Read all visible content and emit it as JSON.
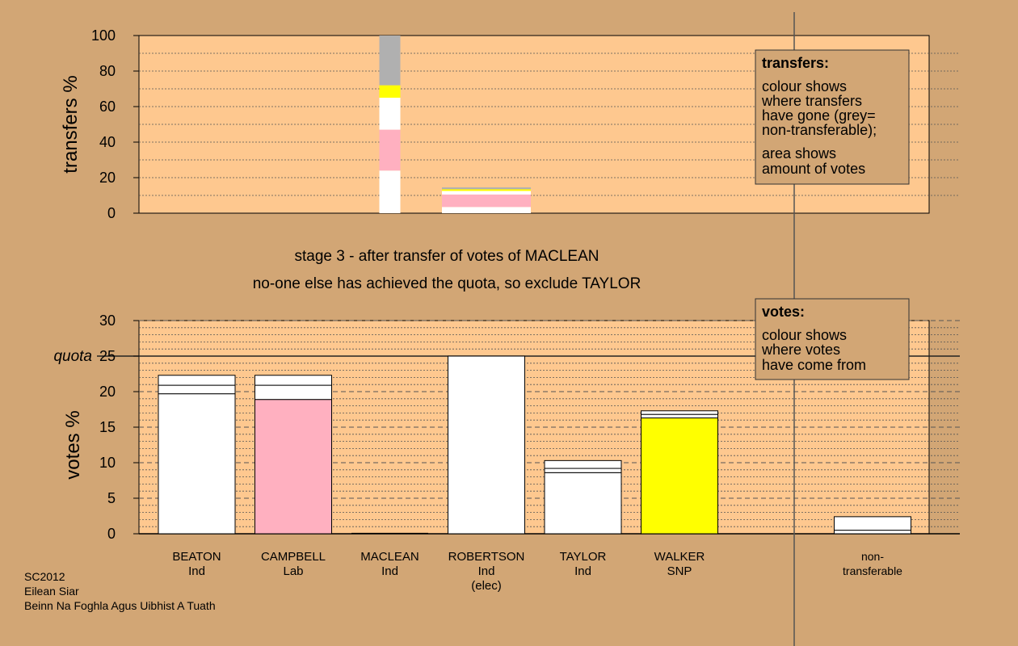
{
  "caption": {
    "line1": "stage 3 - after transfer of votes of MACLEAN",
    "line2": "no-one else has achieved the quota, so exclude TAYLOR"
  },
  "legend_transfers": {
    "title": "transfers:",
    "lines1": [
      "colour shows",
      "where transfers",
      "have gone (grey=",
      "non-transferable);"
    ],
    "lines2": [
      "area shows",
      "amount of votes"
    ]
  },
  "legend_votes": {
    "title": "votes:",
    "lines": [
      "colour shows",
      "where votes",
      "have come from"
    ]
  },
  "footer": [
    "SC2012",
    "Eilean Siar",
    "Beinn Na Foghla Agus Uibhist A Tuath"
  ],
  "colors": {
    "background": "#d2a675",
    "plot_bg": "#fec88f",
    "white": "#ffffff",
    "pink": "#ffb0c0",
    "yellow": "#ffff00",
    "grey": "#b0b0b0",
    "green": "#90d090"
  },
  "chart_data": [
    {
      "type": "bar",
      "name": "transfers",
      "ylabel": "transfers %",
      "ylim": [
        0,
        100
      ],
      "yticks": [
        0,
        20,
        40,
        60,
        80,
        100
      ],
      "grid": true,
      "bars": [
        {
          "candidate": "MACLEAN",
          "segments": [
            {
              "from": 0,
              "to": 24,
              "color": "white"
            },
            {
              "from": 24,
              "to": 47,
              "color": "pink"
            },
            {
              "from": 47,
              "to": 65,
              "color": "white"
            },
            {
              "from": 65,
              "to": 72,
              "color": "yellow"
            },
            {
              "from": 72,
              "to": 100,
              "color": "grey"
            }
          ]
        },
        {
          "candidate": "ROBERTSON",
          "segments": [
            {
              "from": 0,
              "to": 3.5,
              "color": "white"
            },
            {
              "from": 3.5,
              "to": 10.5,
              "color": "pink"
            },
            {
              "from": 10.5,
              "to": 12.5,
              "color": "white"
            },
            {
              "from": 12.5,
              "to": 13.5,
              "color": "yellow"
            },
            {
              "from": 13.5,
              "to": 14.5,
              "color": "grey"
            }
          ]
        }
      ]
    },
    {
      "type": "bar",
      "name": "votes",
      "ylabel": "votes %",
      "ylim": [
        0,
        30
      ],
      "yticks": [
        0,
        5,
        10,
        15,
        20,
        25,
        30
      ],
      "quota": 25,
      "quota_label": "quota",
      "grid": true,
      "categories": [
        {
          "name": "BEATON",
          "party": "Ind",
          "extra": ""
        },
        {
          "name": "CAMPBELL",
          "party": "Lab",
          "extra": ""
        },
        {
          "name": "MACLEAN",
          "party": "Ind",
          "extra": ""
        },
        {
          "name": "ROBERTSON",
          "party": "Ind",
          "extra": "(elec)"
        },
        {
          "name": "TAYLOR",
          "party": "Ind",
          "extra": ""
        },
        {
          "name": "WALKER",
          "party": "SNP",
          "extra": ""
        },
        {
          "name": "",
          "party": "",
          "extra": ""
        },
        {
          "name": "non-",
          "party": "transferable",
          "extra": ""
        }
      ],
      "bars": [
        {
          "candidate": "BEATON",
          "segments": [
            {
              "from": 0,
              "to": 19.7,
              "color": "white"
            },
            {
              "from": 19.7,
              "to": 20.9,
              "color": "white"
            },
            {
              "from": 20.9,
              "to": 22.3,
              "color": "white"
            }
          ]
        },
        {
          "candidate": "CAMPBELL",
          "segments": [
            {
              "from": 0,
              "to": 18.9,
              "color": "pink"
            },
            {
              "from": 18.9,
              "to": 20.9,
              "color": "white"
            },
            {
              "from": 20.9,
              "to": 22.3,
              "color": "white"
            }
          ]
        },
        {
          "candidate": "MACLEAN",
          "segments": []
        },
        {
          "candidate": "ROBERTSON",
          "segments": [
            {
              "from": 0,
              "to": 25,
              "color": "white"
            }
          ]
        },
        {
          "candidate": "TAYLOR",
          "segments": [
            {
              "from": 0,
              "to": 8.6,
              "color": "white"
            },
            {
              "from": 8.6,
              "to": 9.2,
              "color": "white"
            },
            {
              "from": 9.2,
              "to": 10.3,
              "color": "white"
            }
          ]
        },
        {
          "candidate": "WALKER",
          "segments": [
            {
              "from": 0,
              "to": 16.3,
              "color": "yellow"
            },
            {
              "from": 16.3,
              "to": 16.8,
              "color": "white"
            },
            {
              "from": 16.8,
              "to": 17.3,
              "color": "white"
            }
          ]
        },
        {
          "candidate": "",
          "segments": []
        },
        {
          "candidate": "non-transferable",
          "segments": [
            {
              "from": 0,
              "to": 0.5,
              "color": "white"
            },
            {
              "from": 0.5,
              "to": 2.4,
              "color": "white"
            }
          ]
        }
      ]
    }
  ]
}
